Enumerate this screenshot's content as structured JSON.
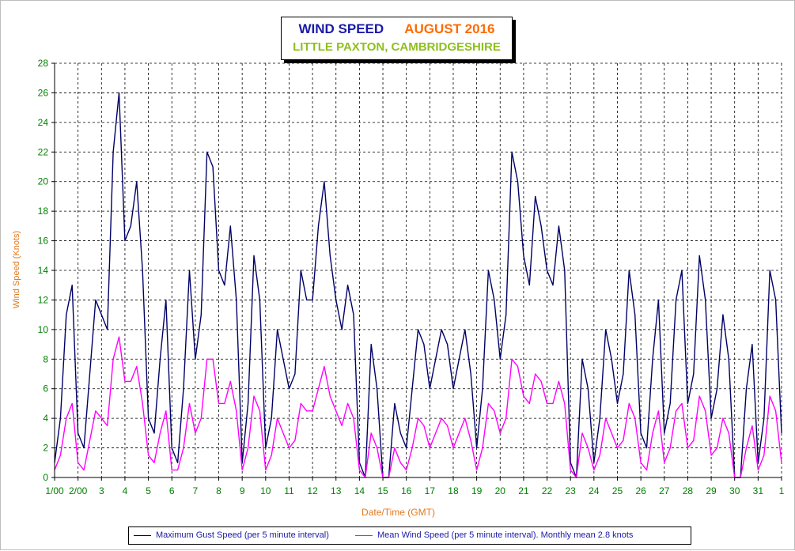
{
  "title": {
    "main": "WIND SPEED",
    "month": "AUGUST 2016",
    "subtitle": "LITTLE PAXTON, CAMBRIDGESHIRE"
  },
  "colors": {
    "gust": "#000066",
    "mean": "#ff00ff",
    "title_main": "#1a1aa6",
    "title_month": "#ff6a00",
    "subtitle": "#8fbf1e",
    "axis_text": "#008000",
    "axis_title": "#e07a1f",
    "grid": "#000000"
  },
  "legend": {
    "gust": "Maximum Gust Speed (per 5 minute interval)",
    "mean": "Mean Wind Speed (per 5 minute interval). Monthly mean 2.8 knots"
  },
  "chart_data": {
    "type": "line",
    "title": "WIND SPEED AUGUST 2016",
    "subtitle": "LITTLE PAXTON, CAMBRIDGESHIRE",
    "xlabel": "Date/Time (GMT)",
    "ylabel": "Wind Speed (Knots)",
    "ylim": [
      0,
      28
    ],
    "yticks": [
      0,
      2,
      4,
      6,
      8,
      10,
      12,
      14,
      16,
      18,
      20,
      22,
      24,
      26,
      28
    ],
    "xlim": [
      1,
      32
    ],
    "xtick_labels": [
      "1/00",
      "2/00",
      "3",
      "4",
      "5",
      "6",
      "7",
      "8",
      "9",
      "10",
      "11",
      "12",
      "13",
      "14",
      "15",
      "16",
      "17",
      "18",
      "19",
      "20",
      "21",
      "22",
      "23",
      "24",
      "25",
      "26",
      "27",
      "28",
      "29",
      "30",
      "31",
      "1"
    ],
    "grid": true,
    "legend_position": "bottom",
    "x_unit": "day of month (August 2016, fractional)",
    "series": [
      {
        "name": "Maximum Gust Speed (per 5 minute interval)",
        "x": [
          1.0,
          1.25,
          1.5,
          1.75,
          2.0,
          2.25,
          2.5,
          2.75,
          3.0,
          3.25,
          3.5,
          3.75,
          4.0,
          4.25,
          4.5,
          4.75,
          5.0,
          5.25,
          5.5,
          5.75,
          6.0,
          6.25,
          6.5,
          6.75,
          7.0,
          7.25,
          7.5,
          7.75,
          8.0,
          8.25,
          8.5,
          8.75,
          9.0,
          9.25,
          9.5,
          9.75,
          10.0,
          10.25,
          10.5,
          10.75,
          11.0,
          11.25,
          11.5,
          11.75,
          12.0,
          12.25,
          12.5,
          12.75,
          13.0,
          13.25,
          13.5,
          13.75,
          14.0,
          14.25,
          14.5,
          14.75,
          15.0,
          15.25,
          15.5,
          15.75,
          16.0,
          16.25,
          16.5,
          16.75,
          17.0,
          17.25,
          17.5,
          17.75,
          18.0,
          18.25,
          18.5,
          18.75,
          19.0,
          19.25,
          19.5,
          19.75,
          20.0,
          20.25,
          20.5,
          20.75,
          21.0,
          21.25,
          21.5,
          21.75,
          22.0,
          22.25,
          22.5,
          22.75,
          23.0,
          23.25,
          23.5,
          23.75,
          24.0,
          24.25,
          24.5,
          24.75,
          25.0,
          25.25,
          25.5,
          25.75,
          26.0,
          26.25,
          26.5,
          26.75,
          27.0,
          27.25,
          27.5,
          27.75,
          28.0,
          28.25,
          28.5,
          28.75,
          29.0,
          29.25,
          29.5,
          29.75,
          30.0,
          30.25,
          30.5,
          30.75,
          31.0,
          31.25,
          31.5,
          31.75,
          32.0
        ],
        "y": [
          1.0,
          4.0,
          11.0,
          13.0,
          3.0,
          2.0,
          7.0,
          12.0,
          11.0,
          10.0,
          22.0,
          26.0,
          16.0,
          17.0,
          20.0,
          14.0,
          4.0,
          3.0,
          8.0,
          12.0,
          2.0,
          1.0,
          6.0,
          14.0,
          8.0,
          11.0,
          22.0,
          21.0,
          14.0,
          13.0,
          17.0,
          12.0,
          1.0,
          5.0,
          15.0,
          12.0,
          2.0,
          4.0,
          10.0,
          8.0,
          6.0,
          7.0,
          14.0,
          12.0,
          12.0,
          17.0,
          20.0,
          15.0,
          12.0,
          10.0,
          13.0,
          11.0,
          1.0,
          0.0,
          9.0,
          6.0,
          0.0,
          0.0,
          5.0,
          3.0,
          2.0,
          6.0,
          10.0,
          9.0,
          6.0,
          8.0,
          10.0,
          9.0,
          6.0,
          8.0,
          10.0,
          7.0,
          2.0,
          6.0,
          14.0,
          12.0,
          8.0,
          11.0,
          22.0,
          20.0,
          15.0,
          13.0,
          19.0,
          17.0,
          14.0,
          13.0,
          17.0,
          14.0,
          1.0,
          0.0,
          8.0,
          6.0,
          1.0,
          4.0,
          10.0,
          8.0,
          5.0,
          7.0,
          14.0,
          11.0,
          3.0,
          2.0,
          8.0,
          12.0,
          3.0,
          5.0,
          12.0,
          14.0,
          5.0,
          7.0,
          15.0,
          12.0,
          4.0,
          6.0,
          11.0,
          8.0,
          0.0,
          0.0,
          6.0,
          9.0,
          1.0,
          4.0,
          14.0,
          12.0,
          3.0
        ]
      },
      {
        "name": "Mean Wind Speed (per 5 minute interval). Monthly mean 2.8 knots",
        "x": [
          1.0,
          1.25,
          1.5,
          1.75,
          2.0,
          2.25,
          2.5,
          2.75,
          3.0,
          3.25,
          3.5,
          3.75,
          4.0,
          4.25,
          4.5,
          4.75,
          5.0,
          5.25,
          5.5,
          5.75,
          6.0,
          6.25,
          6.5,
          6.75,
          7.0,
          7.25,
          7.5,
          7.75,
          8.0,
          8.25,
          8.5,
          8.75,
          9.0,
          9.25,
          9.5,
          9.75,
          10.0,
          10.25,
          10.5,
          10.75,
          11.0,
          11.25,
          11.5,
          11.75,
          12.0,
          12.25,
          12.5,
          12.75,
          13.0,
          13.25,
          13.5,
          13.75,
          14.0,
          14.25,
          14.5,
          14.75,
          15.0,
          15.25,
          15.5,
          15.75,
          16.0,
          16.25,
          16.5,
          16.75,
          17.0,
          17.25,
          17.5,
          17.75,
          18.0,
          18.25,
          18.5,
          18.75,
          19.0,
          19.25,
          19.5,
          19.75,
          20.0,
          20.25,
          20.5,
          20.75,
          21.0,
          21.25,
          21.5,
          21.75,
          22.0,
          22.25,
          22.5,
          22.75,
          23.0,
          23.25,
          23.5,
          23.75,
          24.0,
          24.25,
          24.5,
          24.75,
          25.0,
          25.25,
          25.5,
          25.75,
          26.0,
          26.25,
          26.5,
          26.75,
          27.0,
          27.25,
          27.5,
          27.75,
          28.0,
          28.25,
          28.5,
          28.75,
          29.0,
          29.25,
          29.5,
          29.75,
          30.0,
          30.25,
          30.5,
          30.75,
          31.0,
          31.25,
          31.5,
          31.75,
          32.0
        ],
        "y": [
          0.5,
          1.5,
          4.0,
          5.0,
          1.0,
          0.5,
          2.5,
          4.5,
          4.0,
          3.5,
          8.0,
          9.5,
          6.5,
          6.5,
          7.5,
          5.0,
          1.5,
          1.0,
          3.0,
          4.5,
          0.5,
          0.5,
          2.0,
          5.0,
          3.0,
          4.0,
          8.0,
          8.0,
          5.0,
          5.0,
          6.5,
          4.5,
          0.5,
          2.0,
          5.5,
          4.5,
          0.5,
          1.5,
          4.0,
          3.0,
          2.0,
          2.5,
          5.0,
          4.5,
          4.5,
          6.0,
          7.5,
          5.5,
          4.5,
          3.5,
          5.0,
          4.0,
          0.5,
          0.0,
          3.0,
          2.0,
          0.0,
          0.0,
          2.0,
          1.0,
          0.5,
          2.0,
          4.0,
          3.5,
          2.0,
          3.0,
          4.0,
          3.5,
          2.0,
          3.0,
          4.0,
          2.5,
          0.5,
          2.0,
          5.0,
          4.5,
          3.0,
          4.0,
          8.0,
          7.5,
          5.5,
          5.0,
          7.0,
          6.5,
          5.0,
          5.0,
          6.5,
          5.0,
          0.5,
          0.0,
          3.0,
          2.0,
          0.5,
          1.5,
          4.0,
          3.0,
          2.0,
          2.5,
          5.0,
          4.0,
          1.0,
          0.5,
          3.0,
          4.5,
          1.0,
          2.0,
          4.5,
          5.0,
          2.0,
          2.5,
          5.5,
          4.5,
          1.5,
          2.0,
          4.0,
          3.0,
          0.0,
          0.0,
          2.0,
          3.5,
          0.5,
          1.5,
          5.5,
          4.5,
          1.0
        ]
      }
    ]
  }
}
